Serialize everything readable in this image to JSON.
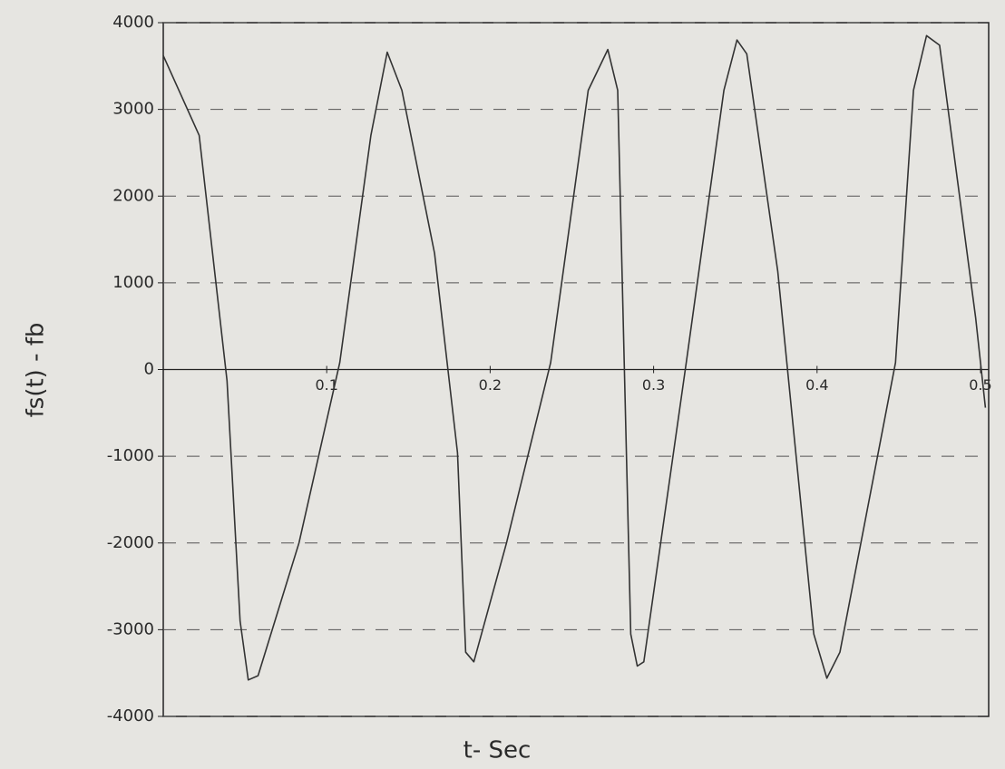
{
  "chart_data": {
    "type": "line",
    "x_label": "t- Sec",
    "y_label": "fs(t) - fb",
    "x": [
      0,
      0.022,
      0.039,
      0.047,
      0.052,
      0.058,
      0.083,
      0.108,
      0.127,
      0.137,
      0.146,
      0.166,
      0.18,
      0.185,
      0.19,
      0.21,
      0.237,
      0.26,
      0.272,
      0.278,
      0.282,
      0.286,
      0.29,
      0.294,
      0.32,
      0.343,
      0.351,
      0.357,
      0.376,
      0.398,
      0.406,
      0.414,
      0.448,
      0.459,
      0.467,
      0.475,
      0.497,
      0.503
    ],
    "values": [
      3620,
      2700,
      -130,
      -2900,
      -3580,
      -3530,
      -2000,
      80,
      2700,
      3660,
      3220,
      1340,
      -960,
      -3260,
      -3370,
      -2000,
      80,
      3220,
      3690,
      3220,
      80,
      -3050,
      -3420,
      -3370,
      80,
      3220,
      3800,
      3640,
      1130,
      -3050,
      -3560,
      -3260,
      80,
      3220,
      3850,
      3740,
      600,
      -440
    ],
    "color": "#333333",
    "xlim": [
      0,
      0.505
    ],
    "xticks": [
      0.1,
      0.2,
      0.3,
      0.4,
      0.5
    ],
    "ylim": [
      -4000,
      4000
    ],
    "yticks": [
      4000,
      3000,
      2000,
      1000,
      0,
      -1000,
      -2000,
      -3000,
      -4000
    ],
    "grid": true
  }
}
